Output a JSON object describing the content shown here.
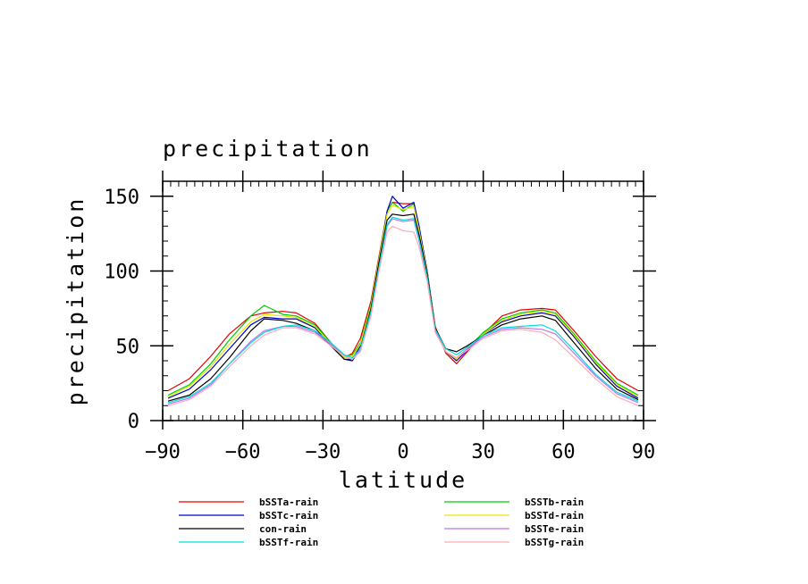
{
  "chart_data": {
    "type": "line",
    "title": "precipitation",
    "xlabel": "latitude",
    "ylabel": "precipitation",
    "xlim": [
      -90,
      90
    ],
    "ylim": [
      0,
      160
    ],
    "xticks": [
      -90,
      -60,
      -30,
      0,
      30,
      60,
      90
    ],
    "xtick_labels": [
      "−90",
      "−60",
      "−30",
      "0",
      "30",
      "60",
      "90"
    ],
    "yticks": [
      0,
      50,
      100,
      150
    ],
    "ytick_labels": [
      "0",
      "50",
      "100",
      "150"
    ],
    "grid": false,
    "legend_position": "bottom",
    "x": [
      -88,
      -80,
      -72,
      -65,
      -57,
      -52,
      -45,
      -40,
      -33,
      -27,
      -22,
      -19,
      -16,
      -12,
      -9,
      -6,
      -4,
      0,
      4,
      6,
      9,
      12,
      16,
      20,
      24,
      30,
      37,
      44,
      52,
      57,
      64,
      72,
      80,
      88
    ],
    "series": [
      {
        "name": "bSSTa-rain",
        "color": "#e00000",
        "values": [
          20,
          28,
          43,
          58,
          70,
          72,
          73,
          72,
          65,
          52,
          42,
          45,
          55,
          80,
          110,
          140,
          146,
          145,
          145,
          128,
          100,
          63,
          45,
          38,
          46,
          58,
          70,
          74,
          75,
          74,
          60,
          43,
          28,
          20
        ]
      },
      {
        "name": "bSSTb-rain",
        "color": "#00cc00",
        "values": [
          17,
          24,
          38,
          54,
          70,
          77,
          71,
          70,
          64,
          52,
          43,
          44,
          52,
          78,
          108,
          140,
          146,
          140,
          145,
          128,
          100,
          62,
          46,
          41,
          48,
          59,
          68,
          72,
          74,
          72,
          58,
          40,
          25,
          17
        ]
      },
      {
        "name": "bSSTc-rain",
        "color": "#0000cc",
        "values": [
          15,
          21,
          34,
          48,
          64,
          69,
          68,
          68,
          62,
          50,
          41,
          41,
          50,
          76,
          107,
          140,
          150,
          142,
          146,
          130,
          100,
          62,
          46,
          40,
          47,
          58,
          66,
          70,
          72,
          70,
          56,
          38,
          23,
          15
        ]
      },
      {
        "name": "bSSTd-rain",
        "color": "#e6e600",
        "values": [
          16,
          23,
          36,
          51,
          66,
          71,
          70,
          69,
          63,
          51,
          42,
          43,
          51,
          77,
          108,
          138,
          144,
          141,
          143,
          127,
          99,
          62,
          46,
          41,
          48,
          58,
          67,
          71,
          73,
          71,
          57,
          39,
          24,
          16
        ]
      },
      {
        "name": "con-rain",
        "color": "#000000",
        "values": [
          13,
          17,
          28,
          42,
          60,
          68,
          67,
          65,
          60,
          50,
          41,
          40,
          48,
          75,
          106,
          134,
          138,
          137,
          138,
          124,
          98,
          62,
          48,
          46,
          50,
          57,
          64,
          68,
          70,
          67,
          52,
          35,
          21,
          14
        ]
      },
      {
        "name": "bSSTe-rain",
        "color": "#bb77ee",
        "values": [
          11,
          15,
          24,
          38,
          53,
          60,
          63,
          63,
          59,
          51,
          43,
          41,
          47,
          72,
          102,
          130,
          135,
          133,
          134,
          120,
          95,
          60,
          46,
          42,
          48,
          56,
          61,
          62,
          61,
          58,
          45,
          30,
          18,
          12
        ]
      },
      {
        "name": "bSSTf-rain",
        "color": "#00dddd",
        "values": [
          12,
          16,
          25,
          38,
          52,
          59,
          63,
          64,
          60,
          52,
          44,
          42,
          48,
          73,
          103,
          131,
          136,
          134,
          135,
          121,
          96,
          61,
          48,
          44,
          49,
          57,
          62,
          63,
          64,
          60,
          47,
          31,
          19,
          13
        ]
      },
      {
        "name": "bSSTg-rain",
        "color": "#ffaabb",
        "values": [
          10,
          14,
          23,
          36,
          50,
          57,
          62,
          62,
          58,
          50,
          43,
          41,
          46,
          70,
          100,
          126,
          130,
          127,
          126,
          116,
          93,
          59,
          46,
          42,
          47,
          55,
          60,
          61,
          59,
          54,
          42,
          28,
          16,
          10
        ]
      }
    ],
    "legend_order": [
      "bSSTa-rain",
      "bSSTb-rain",
      "bSSTc-rain",
      "bSSTd-rain",
      "con-rain",
      "bSSTe-rain",
      "bSSTf-rain",
      "bSSTg-rain"
    ]
  }
}
